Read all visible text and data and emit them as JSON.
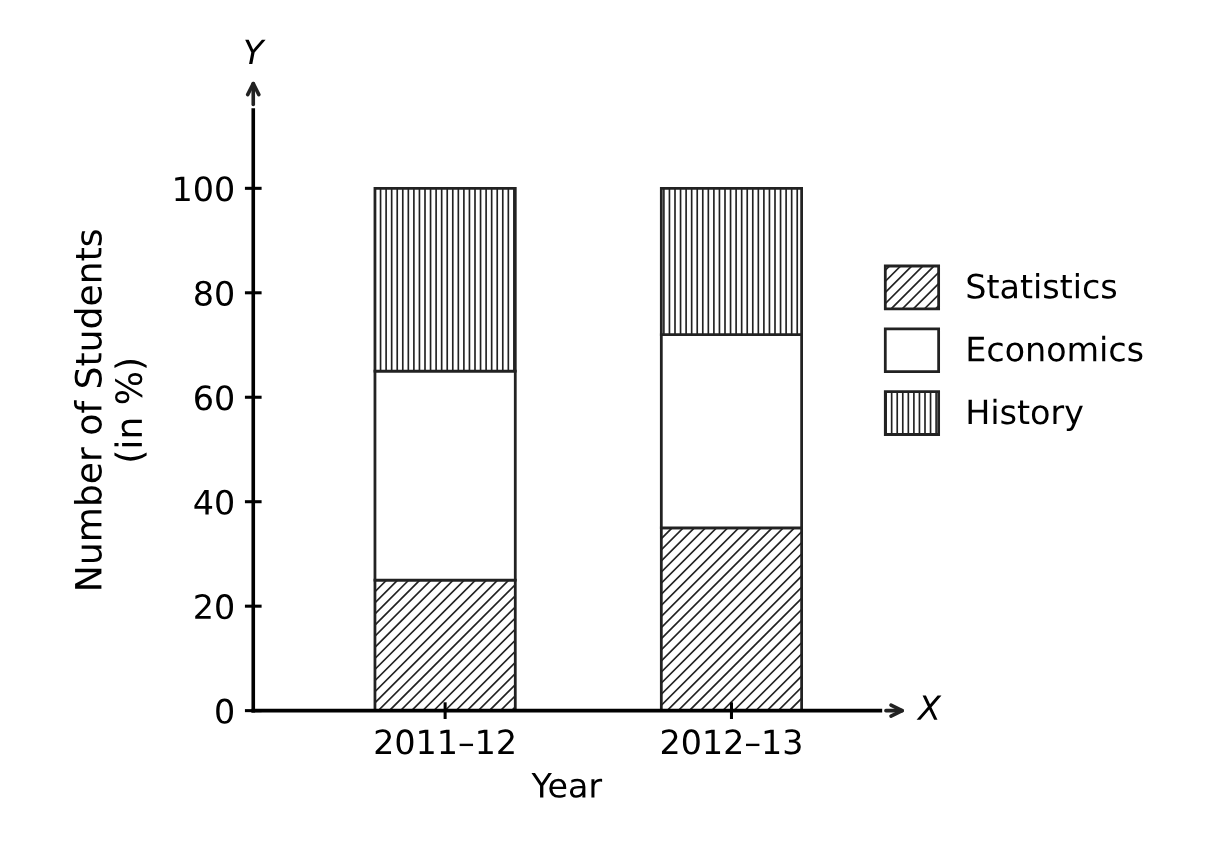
{
  "chart_data": {
    "type": "bar",
    "stacked": true,
    "xlabel": "Year",
    "ylabel": "Number of Students\n(in %)",
    "categories": [
      "2011–12",
      "2012–13"
    ],
    "series": [
      {
        "name": "Statistics",
        "color": "#222222",
        "values": [
          25,
          35
        ]
      },
      {
        "name": "Economics",
        "color": "#ffffff",
        "values": [
          40,
          37
        ]
      },
      {
        "name": "History",
        "color": "#222222",
        "values": [
          35,
          28
        ]
      }
    ],
    "ylim": [
      0,
      115
    ],
    "yticks": [
      0,
      20,
      40,
      60,
      80,
      100
    ],
    "grid": false,
    "legend": "right",
    "annotations": [
      "Y",
      "X"
    ]
  }
}
